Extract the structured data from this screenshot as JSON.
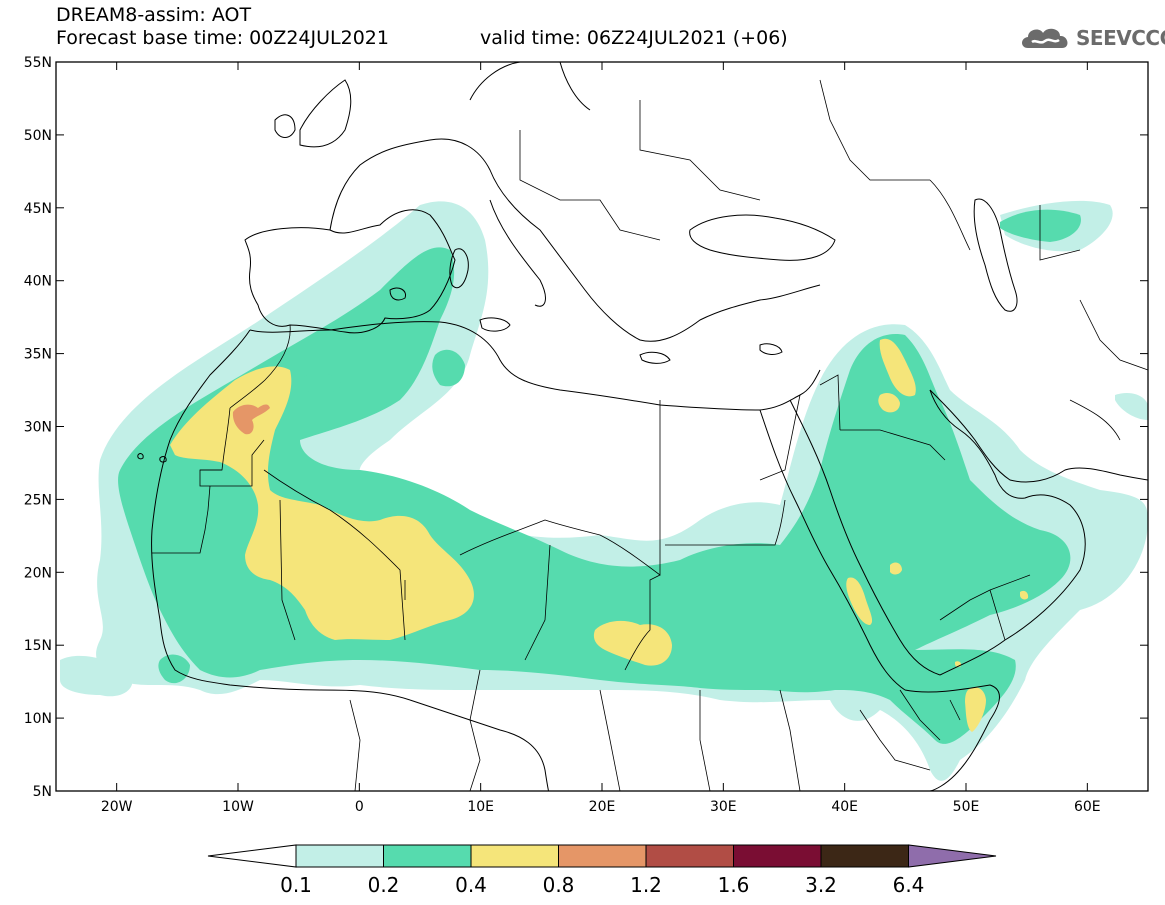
{
  "header": {
    "model_line": "DREAM8-assim: AOT",
    "base_time_line": "Forecast base time: 00Z24JUL2021",
    "valid_time_line": "valid time: 06Z24JUL2021 (+06)"
  },
  "logo": {
    "text": "SEEVCCC",
    "icon": "cloud-icon"
  },
  "map": {
    "lat_range": [
      5,
      55
    ],
    "lon_range": [
      -25,
      65
    ],
    "lat_ticks": [
      {
        "value": 55,
        "label": "55N"
      },
      {
        "value": 50,
        "label": "50N"
      },
      {
        "value": 45,
        "label": "45N"
      },
      {
        "value": 40,
        "label": "40N"
      },
      {
        "value": 35,
        "label": "35N"
      },
      {
        "value": 30,
        "label": "30N"
      },
      {
        "value": 25,
        "label": "25N"
      },
      {
        "value": 20,
        "label": "20N"
      },
      {
        "value": 15,
        "label": "15N"
      },
      {
        "value": 10,
        "label": "10N"
      },
      {
        "value": 5,
        "label": "5N"
      }
    ],
    "lon_ticks": [
      {
        "value": -20,
        "label": "20W"
      },
      {
        "value": -10,
        "label": "10W"
      },
      {
        "value": 0,
        "label": "0"
      },
      {
        "value": 10,
        "label": "10E"
      },
      {
        "value": 20,
        "label": "20E"
      },
      {
        "value": 30,
        "label": "30E"
      },
      {
        "value": 40,
        "label": "40E"
      },
      {
        "value": 50,
        "label": "50E"
      },
      {
        "value": 60,
        "label": "60E"
      }
    ],
    "colors": {
      "c01": "#c2efe7",
      "c02": "#56dbae",
      "c04": "#f5e57a",
      "c08": "#e59667",
      "c12": "#b14d45",
      "c16": "#7a0d33",
      "c32": "#3c2716",
      "c64": "#8f6dab"
    }
  },
  "colorbar": {
    "segments": [
      {
        "color": "#c2efe7"
      },
      {
        "color": "#56dbae"
      },
      {
        "color": "#f5e57a"
      },
      {
        "color": "#e59667"
      },
      {
        "color": "#b14d45"
      },
      {
        "color": "#7a0d33"
      },
      {
        "color": "#3c2716"
      }
    ],
    "under_color": "#ffffff",
    "over_color": "#8f6dab",
    "labels": [
      "0.1",
      "0.2",
      "0.4",
      "0.8",
      "1.2",
      "1.6",
      "3.2",
      "6.4"
    ]
  }
}
